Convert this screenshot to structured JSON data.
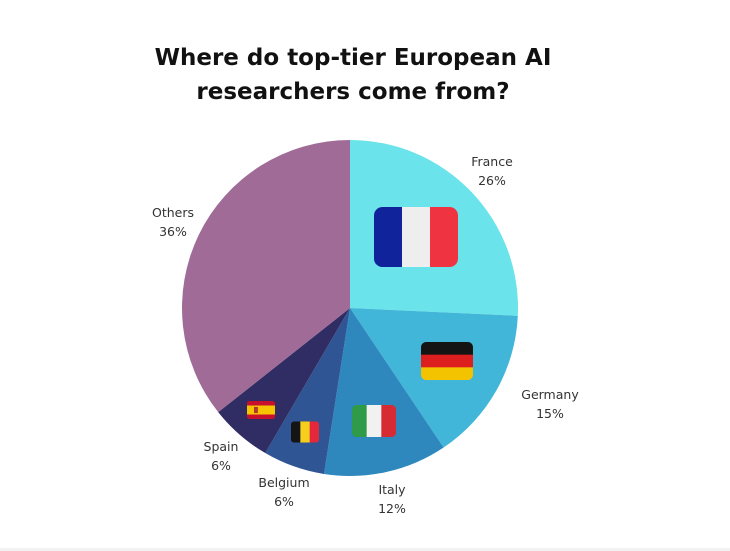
{
  "title_lines": [
    "Where do top-tier European AI",
    "researchers come from?"
  ],
  "chart_data": {
    "type": "pie",
    "title": "Where do top-tier European AI researchers come from?",
    "start_angle_deg": 0,
    "direction": "clockwise",
    "slices": [
      {
        "label": "France",
        "percent_label": "26%",
        "value": 26,
        "color": "#6be3ea",
        "icon": "france-flag-icon"
      },
      {
        "label": "Germany",
        "percent_label": "15%",
        "value": 15,
        "color": "#42b6d8",
        "icon": "germany-flag-icon"
      },
      {
        "label": "Italy",
        "percent_label": "12%",
        "value": 12,
        "color": "#2e87bd",
        "icon": "italy-flag-icon"
      },
      {
        "label": "Belgium",
        "percent_label": "6%",
        "value": 6,
        "color": "#2f5594",
        "icon": "belgium-flag-icon"
      },
      {
        "label": "Spain",
        "percent_label": "6%",
        "value": 6,
        "color": "#2f2d63",
        "icon": "spain-flag-icon"
      },
      {
        "label": "Others",
        "percent_label": "36%",
        "value": 36,
        "color": "#a06c97",
        "icon": ""
      }
    ],
    "legend": "none",
    "labels": "outside"
  }
}
